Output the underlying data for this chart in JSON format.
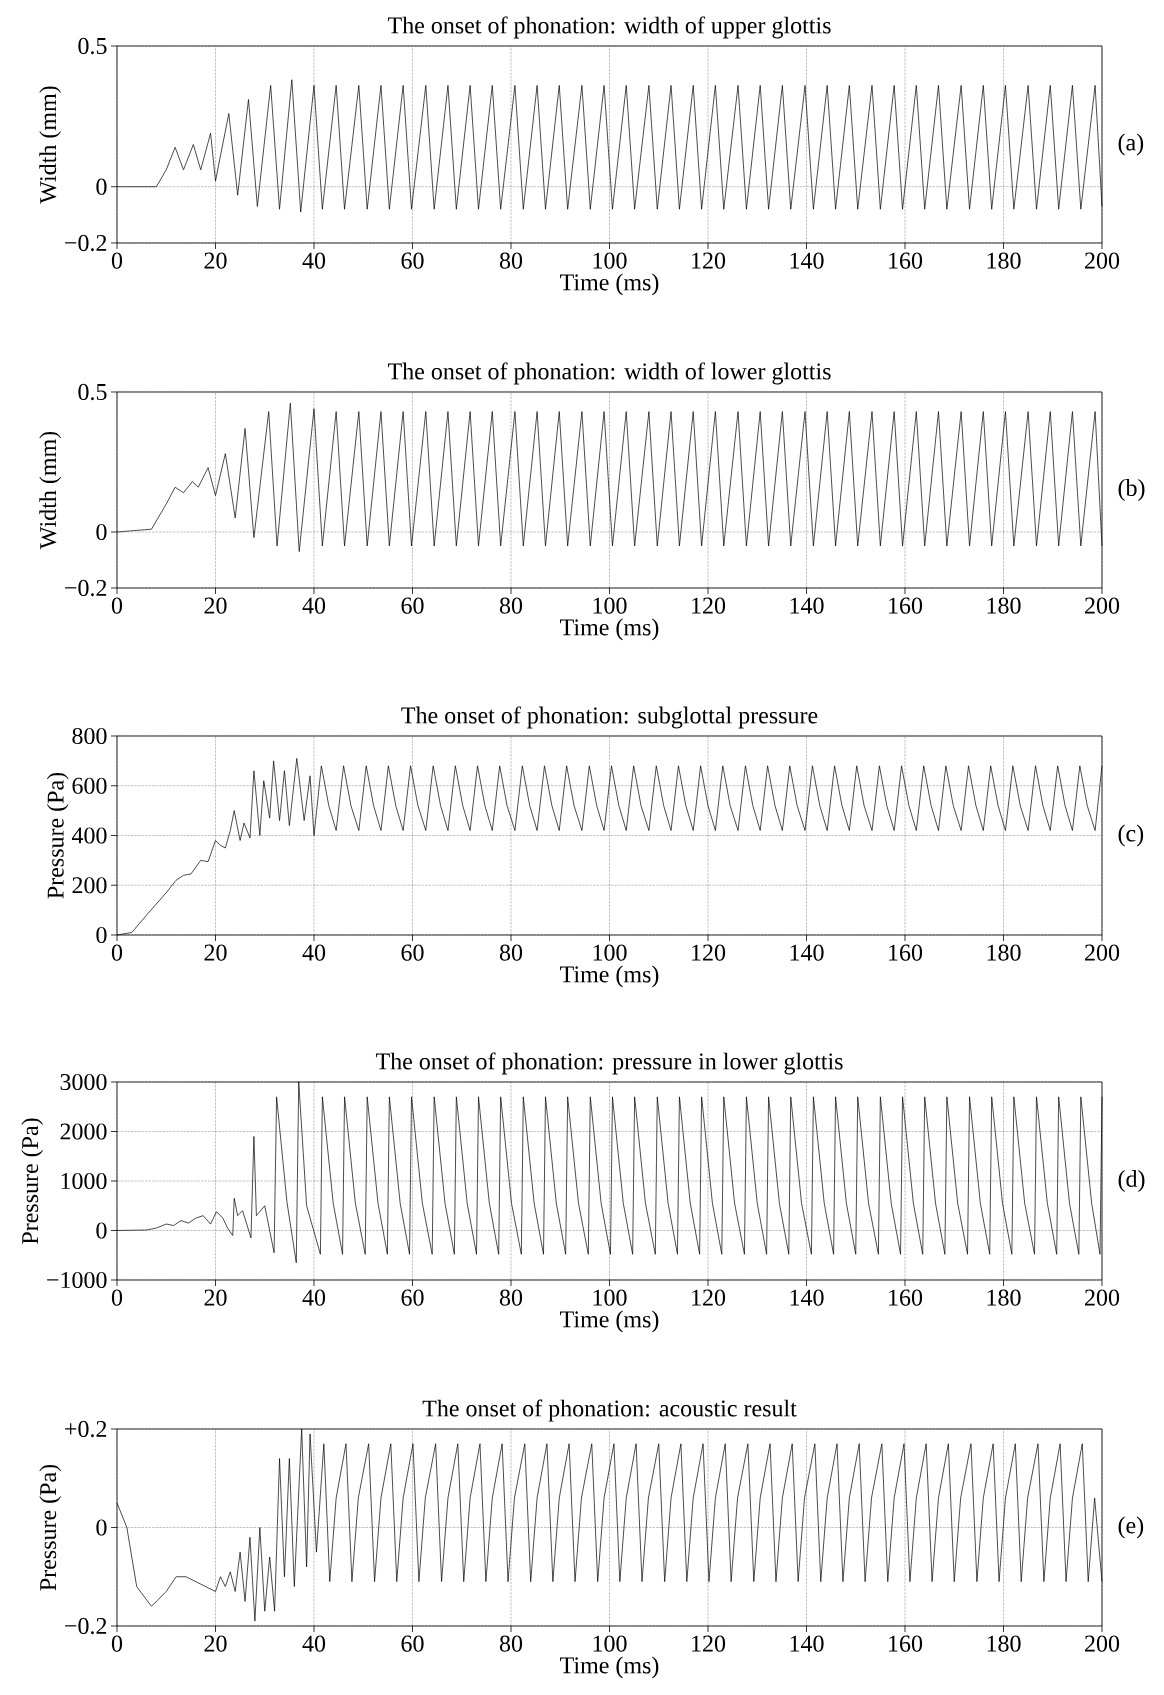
{
  "chart_data": [
    {
      "type": "line",
      "title": "The onset of phonation: width of upper glottis",
      "xlabel": "Time (ms)",
      "ylabel": "Width (mm)",
      "annotations": [
        "(a)"
      ],
      "color": "#000000",
      "xlim": [
        0,
        200
      ],
      "xticks": [
        0,
        20,
        40,
        60,
        80,
        100,
        120,
        140,
        160,
        180,
        200
      ],
      "ylim": [
        -0.2,
        0.5
      ],
      "yticks": [
        {
          "value": -0.2,
          "label": "−0.2"
        },
        0,
        0.5
      ],
      "grid": true,
      "x": [
        0,
        8,
        10,
        11.8,
        13.5,
        15.5,
        17,
        19,
        20,
        22.7,
        24.5,
        26.7,
        28.5,
        31.2,
        33,
        35.5,
        37.3,
        40.0,
        41.7,
        44.5,
        46.2,
        49.1,
        50.8,
        53.6,
        55.3,
        58.1,
        59.8,
        62.7,
        64.4,
        67.2,
        68.9,
        71.7,
        73.4,
        76.2,
        77.9,
        80.8,
        82.5,
        85.3,
        87.0,
        89.8,
        91.5,
        94.4,
        96.1,
        98.9,
        100.6,
        103.4,
        105.1,
        108.0,
        109.7,
        112.5,
        114.2,
        117.0,
        118.7,
        121.5,
        123.2,
        126.1,
        127.8,
        130.6,
        132.3,
        135.1,
        136.8,
        139.7,
        141.4,
        144.2,
        145.9,
        148.7,
        150.4,
        153.3,
        155.0,
        157.8,
        159.5,
        162.3,
        164.0,
        166.8,
        168.5,
        171.4,
        173.1,
        175.9,
        177.6,
        180.4,
        182.1,
        185.0,
        186.7,
        189.5,
        191.2,
        194.0,
        195.7,
        198.6,
        200.0
      ],
      "values": [
        0,
        0,
        0.06,
        0.14,
        0.06,
        0.15,
        0.06,
        0.19,
        0.02,
        0.26,
        -0.03,
        0.31,
        -0.07,
        0.36,
        -0.08,
        0.38,
        -0.09,
        0.36,
        -0.08,
        0.36,
        -0.08,
        0.36,
        -0.08,
        0.36,
        -0.08,
        0.36,
        -0.08,
        0.36,
        -0.08,
        0.36,
        -0.08,
        0.36,
        -0.08,
        0.36,
        -0.08,
        0.36,
        -0.08,
        0.36,
        -0.08,
        0.36,
        -0.08,
        0.36,
        -0.08,
        0.36,
        -0.08,
        0.36,
        -0.08,
        0.36,
        -0.08,
        0.36,
        -0.08,
        0.36,
        -0.08,
        0.36,
        -0.08,
        0.36,
        -0.08,
        0.36,
        -0.08,
        0.36,
        -0.08,
        0.36,
        -0.08,
        0.36,
        -0.08,
        0.36,
        -0.08,
        0.36,
        -0.08,
        0.36,
        -0.08,
        0.36,
        -0.08,
        0.36,
        -0.08,
        0.36,
        -0.08,
        0.36,
        -0.08,
        0.36,
        -0.08,
        0.36,
        -0.08,
        0.36,
        -0.08,
        0.36,
        -0.08,
        0.36,
        -0.07
      ]
    },
    {
      "type": "line",
      "title": "The onset of phonation: width of lower glottis",
      "xlabel": "Time (ms)",
      "ylabel": "Width (mm)",
      "annotations": [
        "(b)"
      ],
      "color": "#000000",
      "xlim": [
        0,
        200
      ],
      "xticks": [
        0,
        20,
        40,
        60,
        80,
        100,
        120,
        140,
        160,
        180,
        200
      ],
      "ylim": [
        -0.2,
        0.5
      ],
      "yticks": [
        {
          "value": -0.2,
          "label": "−0.2"
        },
        0,
        0.5
      ],
      "grid": true,
      "x": [
        0,
        7,
        10,
        11.8,
        13.5,
        15.3,
        16.5,
        18.5,
        20,
        22,
        24,
        26,
        27.8,
        30.8,
        32.5,
        35.2,
        37,
        40.0,
        41.7,
        44.5,
        46.2,
        49.1,
        50.8,
        53.6,
        55.3,
        58.1,
        59.8,
        62.7,
        64.4,
        67.2,
        68.9,
        71.7,
        73.4,
        76.2,
        77.9,
        80.8,
        82.5,
        85.3,
        87.0,
        89.8,
        91.5,
        94.4,
        96.1,
        98.9,
        100.6,
        103.4,
        105.1,
        108.0,
        109.7,
        112.5,
        114.2,
        117.0,
        118.7,
        121.5,
        123.2,
        126.1,
        127.8,
        130.6,
        132.3,
        135.1,
        136.8,
        139.7,
        141.4,
        144.2,
        145.9,
        148.7,
        150.4,
        153.3,
        155.0,
        157.8,
        159.5,
        162.3,
        164.0,
        166.8,
        168.5,
        171.4,
        173.1,
        175.9,
        177.6,
        180.4,
        182.1,
        185.0,
        186.7,
        189.5,
        191.2,
        194.0,
        195.7,
        198.6,
        200.0
      ],
      "values": [
        0,
        0.01,
        0.1,
        0.16,
        0.14,
        0.18,
        0.16,
        0.23,
        0.13,
        0.28,
        0.05,
        0.37,
        -0.02,
        0.43,
        -0.05,
        0.46,
        -0.07,
        0.44,
        -0.05,
        0.43,
        -0.05,
        0.43,
        -0.05,
        0.43,
        -0.05,
        0.43,
        -0.05,
        0.43,
        -0.05,
        0.43,
        -0.05,
        0.43,
        -0.05,
        0.43,
        -0.05,
        0.43,
        -0.05,
        0.43,
        -0.05,
        0.43,
        -0.05,
        0.43,
        -0.05,
        0.43,
        -0.05,
        0.43,
        -0.05,
        0.43,
        -0.05,
        0.43,
        -0.05,
        0.43,
        -0.05,
        0.43,
        -0.05,
        0.43,
        -0.05,
        0.43,
        -0.05,
        0.43,
        -0.05,
        0.43,
        -0.05,
        0.43,
        -0.05,
        0.43,
        -0.05,
        0.43,
        -0.05,
        0.43,
        -0.05,
        0.43,
        -0.05,
        0.43,
        -0.05,
        0.43,
        -0.05,
        0.43,
        -0.05,
        0.43,
        -0.05,
        0.43,
        -0.05,
        0.43,
        -0.05,
        0.43,
        -0.05,
        0.43,
        -0.05
      ]
    },
    {
      "type": "line",
      "title": "The onset of phonation: subglottal pressure",
      "xlabel": "Time (ms)",
      "ylabel": "Pressure (Pa)",
      "annotations": [
        "(c)"
      ],
      "color": "#000000",
      "xlim": [
        0,
        200
      ],
      "xticks": [
        0,
        20,
        40,
        60,
        80,
        100,
        120,
        140,
        160,
        180,
        200
      ],
      "ylim": [
        0,
        800
      ],
      "yticks": [
        0,
        200,
        400,
        600,
        800
      ],
      "grid": true,
      "x": [
        0,
        3,
        6,
        10,
        12,
        13.5,
        15,
        17,
        18.5,
        20,
        21,
        22,
        23,
        23.8,
        25,
        25.8,
        27,
        27.8,
        29,
        29.8,
        31,
        31.8,
        33,
        34,
        35,
        36.5,
        38,
        39.2,
        40.0,
        41.5,
        43.0,
        44.5,
        46.0,
        47.5,
        49.1,
        50.6,
        52.1,
        53.6,
        55.1,
        56.6,
        58.1,
        59.6,
        61.1,
        62.7,
        64.2,
        65.7,
        67.2,
        68.7,
        70.2,
        71.7,
        73.2,
        74.7,
        76.2,
        77.7,
        79.2,
        80.8,
        82.3,
        83.8,
        85.3,
        86.8,
        88.3,
        89.8,
        91.3,
        92.8,
        94.4,
        95.9,
        97.4,
        98.9,
        100.4,
        101.9,
        103.4,
        104.9,
        106.4,
        108.0,
        109.5,
        111.0,
        112.5,
        114.0,
        115.5,
        117.0,
        118.5,
        120.0,
        121.5,
        123.0,
        124.5,
        126.1,
        127.6,
        129.1,
        130.6,
        132.1,
        133.6,
        135.1,
        136.6,
        138.1,
        139.7,
        141.2,
        142.7,
        144.2,
        145.7,
        147.2,
        148.7,
        150.2,
        151.7,
        153.3,
        154.8,
        156.3,
        157.8,
        159.3,
        160.8,
        162.3,
        163.8,
        165.3,
        166.8,
        168.3,
        169.8,
        171.4,
        172.9,
        174.4,
        175.9,
        177.4,
        178.9,
        180.4,
        181.9,
        183.4,
        185.0,
        186.5,
        188.0,
        189.5,
        191.0,
        192.5,
        194.0,
        195.5,
        197.0,
        198.6,
        200.0
      ],
      "values": [
        0,
        10,
        80,
        170,
        220,
        240,
        245,
        300,
        295,
        380,
        360,
        350,
        420,
        500,
        380,
        450,
        390,
        660,
        400,
        620,
        470,
        700,
        460,
        660,
        440,
        710,
        460,
        640,
        400,
        680,
        520,
        420,
        680,
        520,
        420,
        680,
        520,
        420,
        680,
        520,
        420,
        680,
        520,
        420,
        680,
        520,
        420,
        680,
        520,
        420,
        680,
        520,
        420,
        680,
        520,
        420,
        680,
        520,
        420,
        680,
        520,
        420,
        680,
        520,
        420,
        680,
        520,
        420,
        680,
        520,
        420,
        680,
        520,
        420,
        680,
        520,
        420,
        680,
        520,
        420,
        680,
        520,
        420,
        680,
        520,
        420,
        680,
        520,
        420,
        680,
        520,
        420,
        680,
        520,
        420,
        680,
        520,
        420,
        680,
        520,
        420,
        680,
        520,
        420,
        680,
        520,
        420,
        680,
        520,
        420,
        680,
        520,
        420,
        680,
        520,
        420,
        680,
        520,
        420,
        680,
        520,
        420,
        680,
        520,
        420,
        680,
        520,
        420,
        680,
        520,
        420,
        680,
        520,
        420,
        680
      ]
    },
    {
      "type": "line",
      "title": "The onset of phonation: pressure in lower glottis",
      "xlabel": "Time (ms)",
      "ylabel": "Pressure (Pa)",
      "annotations": [
        "(d)"
      ],
      "color": "#000000",
      "xlim": [
        0,
        200
      ],
      "xticks": [
        0,
        20,
        40,
        60,
        80,
        100,
        120,
        140,
        160,
        180,
        200
      ],
      "ylim": [
        -1000,
        3000
      ],
      "yticks": [
        {
          "value": -1000,
          "label": "−1000"
        },
        0,
        1000,
        2000,
        3000
      ],
      "grid": true,
      "x": [
        0,
        6,
        8,
        10,
        11.5,
        13,
        14.5,
        16,
        17.5,
        19,
        20.2,
        21.5,
        22.5,
        23.5,
        23.8,
        24.5,
        25.5,
        27.2,
        27.8,
        28.3,
        30,
        31.9,
        32.4,
        34.5,
        36.4,
        36.9,
        38.5,
        41.3,
        41.7,
        43.9,
        45.8,
        46.2,
        48.4,
        50.4,
        50.8,
        53.0,
        54.9,
        55.3,
        57.5,
        59.4,
        59.8,
        62.0,
        64.0,
        64.4,
        66.6,
        68.5,
        68.9,
        71.1,
        73.0,
        73.4,
        75.6,
        77.5,
        77.9,
        80.1,
        82.1,
        82.5,
        84.7,
        86.6,
        87.0,
        89.2,
        91.1,
        91.5,
        93.7,
        95.7,
        96.1,
        98.3,
        100.2,
        100.6,
        102.8,
        104.7,
        105.1,
        107.3,
        109.3,
        109.7,
        111.9,
        113.8,
        114.2,
        116.4,
        118.3,
        118.7,
        120.9,
        122.8,
        123.2,
        125.4,
        127.4,
        127.8,
        130.0,
        131.9,
        132.3,
        134.5,
        136.4,
        136.8,
        139.0,
        141.0,
        141.4,
        143.6,
        145.5,
        145.9,
        148.1,
        150.0,
        150.4,
        152.6,
        154.6,
        155.0,
        157.2,
        159.1,
        159.5,
        161.7,
        163.6,
        164.0,
        166.2,
        168.1,
        168.5,
        170.7,
        172.7,
        173.1,
        175.3,
        177.2,
        177.6,
        179.8,
        181.7,
        182.1,
        184.3,
        186.3,
        186.7,
        188.9,
        190.8,
        191.2,
        193.4,
        195.3,
        195.7,
        197.9,
        199.6,
        200.0
      ],
      "values": [
        0,
        10,
        50,
        130,
        100,
        200,
        150,
        250,
        300,
        130,
        380,
        250,
        40,
        -100,
        650,
        300,
        400,
        -150,
        1900,
        300,
        500,
        -450,
        2700,
        580,
        -650,
        3000,
        500,
        -480,
        2700,
        550,
        -480,
        2700,
        550,
        -480,
        2700,
        550,
        -480,
        2700,
        550,
        -480,
        2700,
        550,
        -480,
        2700,
        550,
        -480,
        2700,
        550,
        -480,
        2700,
        550,
        -480,
        2700,
        550,
        -480,
        2700,
        550,
        -480,
        2700,
        550,
        -480,
        2700,
        550,
        -480,
        2700,
        550,
        -480,
        2700,
        550,
        -480,
        2700,
        550,
        -480,
        2700,
        550,
        -480,
        2700,
        550,
        -480,
        2700,
        550,
        -480,
        2700,
        550,
        -480,
        2700,
        550,
        -480,
        2700,
        550,
        -480,
        2700,
        550,
        -480,
        2700,
        550,
        -480,
        2700,
        550,
        -480,
        2700,
        550,
        -480,
        2700,
        550,
        -480,
        2700,
        550,
        -480,
        2700,
        550,
        -480,
        2700,
        550,
        -480,
        2700,
        550,
        -480,
        2700,
        550,
        -480,
        2700,
        550,
        -480,
        2700,
        550,
        -480,
        2700,
        550,
        -480,
        2700,
        550,
        -480,
        2700
      ]
    },
    {
      "type": "line",
      "title": "The onset of phonation: acoustic result",
      "xlabel": "Time (ms)",
      "ylabel": "Pressure (Pa)",
      "annotations": [
        "(e)"
      ],
      "color": "#000000",
      "xlim": [
        0,
        200
      ],
      "xticks": [
        0,
        20,
        40,
        60,
        80,
        100,
        120,
        140,
        160,
        180,
        200
      ],
      "ylim": [
        -0.2,
        0.2
      ],
      "yticks": [
        {
          "value": -0.2,
          "label": "−0.2"
        },
        0,
        {
          "value": 0.2,
          "label": "+0.2"
        }
      ],
      "grid": true,
      "x": [
        0,
        2,
        4,
        7,
        10,
        12,
        14,
        16,
        18,
        20,
        21,
        22,
        23,
        24,
        25,
        26,
        27,
        28,
        29,
        30,
        31,
        32,
        33,
        34,
        35,
        36,
        37.5,
        38.5,
        39.2,
        40.5,
        42.0,
        43.2,
        44.5,
        46.5,
        47.7,
        49.0,
        51.1,
        52.3,
        53.6,
        55.6,
        56.8,
        58.1,
        60.1,
        61.3,
        62.6,
        64.7,
        65.9,
        67.2,
        69.2,
        70.4,
        71.7,
        73.7,
        74.9,
        76.2,
        78.2,
        79.4,
        80.7,
        82.8,
        84.0,
        85.3,
        87.3,
        88.5,
        89.8,
        91.8,
        93.0,
        94.3,
        96.4,
        97.6,
        98.9,
        100.9,
        102.1,
        103.4,
        105.4,
        106.6,
        107.9,
        110.0,
        111.2,
        112.5,
        114.5,
        115.7,
        117.0,
        119.0,
        120.2,
        121.5,
        123.5,
        124.7,
        126.0,
        128.1,
        129.3,
        130.6,
        132.6,
        133.8,
        135.1,
        137.1,
        138.3,
        139.6,
        141.7,
        142.9,
        144.2,
        146.2,
        147.4,
        148.7,
        150.7,
        151.9,
        153.2,
        155.3,
        156.5,
        157.8,
        159.8,
        161.0,
        162.3,
        164.3,
        165.5,
        166.8,
        168.8,
        170.0,
        171.3,
        173.4,
        174.6,
        175.9,
        177.9,
        179.1,
        180.4,
        182.4,
        183.6,
        184.9,
        187.0,
        188.2,
        189.5,
        191.5,
        192.7,
        194.0,
        196.0,
        197.2,
        198.5,
        200.0
      ],
      "values": [
        0.05,
        0,
        -0.12,
        -0.16,
        -0.13,
        -0.1,
        -0.1,
        -0.11,
        -0.12,
        -0.13,
        -0.1,
        -0.12,
        -0.09,
        -0.13,
        -0.05,
        -0.15,
        -0.02,
        -0.19,
        0,
        -0.17,
        -0.06,
        -0.17,
        0.14,
        -0.1,
        0.14,
        -0.12,
        0.2,
        -0.08,
        0.19,
        -0.05,
        0.17,
        -0.11,
        0.06,
        0.17,
        -0.11,
        0.06,
        0.17,
        -0.11,
        0.06,
        0.17,
        -0.11,
        0.06,
        0.17,
        -0.11,
        0.06,
        0.17,
        -0.11,
        0.06,
        0.17,
        -0.11,
        0.06,
        0.17,
        -0.11,
        0.06,
        0.17,
        -0.11,
        0.06,
        0.17,
        -0.11,
        0.06,
        0.17,
        -0.11,
        0.06,
        0.17,
        -0.11,
        0.06,
        0.17,
        -0.11,
        0.06,
        0.17,
        -0.11,
        0.06,
        0.17,
        -0.11,
        0.06,
        0.17,
        -0.11,
        0.06,
        0.17,
        -0.11,
        0.06,
        0.17,
        -0.11,
        0.06,
        0.17,
        -0.11,
        0.06,
        0.17,
        -0.11,
        0.06,
        0.17,
        -0.11,
        0.06,
        0.17,
        -0.11,
        0.06,
        0.17,
        -0.11,
        0.06,
        0.17,
        -0.11,
        0.06,
        0.17,
        -0.11,
        0.06,
        0.17,
        -0.11,
        0.06,
        0.17,
        -0.11,
        0.06,
        0.17,
        -0.11,
        0.06,
        0.17,
        -0.11,
        0.06,
        0.17,
        -0.11,
        0.06,
        0.17,
        -0.11,
        0.06,
        0.17,
        -0.11,
        0.06,
        0.17,
        -0.11,
        0.06,
        0.17,
        -0.11,
        0.06,
        0.17,
        -0.11,
        0.06,
        -0.11
      ]
    }
  ]
}
